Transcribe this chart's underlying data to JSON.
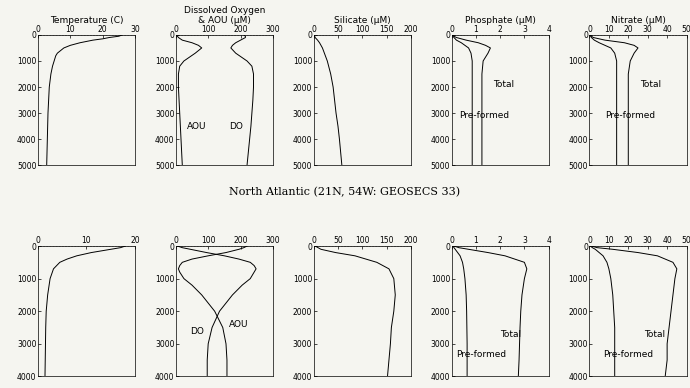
{
  "title_atlantic": "North Atlantic (21N, 54W: GEOSECS 33)",
  "background_color": "#f5f5f0",
  "atlantic": {
    "temp": {
      "xlim": [
        0,
        30
      ],
      "xticks": [
        0,
        10,
        20,
        30
      ],
      "xlabel": "Temperature (C)",
      "depth": [
        0,
        50,
        100,
        150,
        200,
        300,
        400,
        500,
        600,
        700,
        800,
        1000,
        1200,
        1500,
        2000,
        2500,
        3000,
        3500,
        4000,
        4500,
        5000
      ],
      "values": [
        26,
        25,
        22,
        20,
        17,
        13,
        10,
        8,
        7,
        6,
        5.5,
        5,
        4.5,
        4,
        3.5,
        3.3,
        3.1,
        3.0,
        2.9,
        2.8,
        2.7
      ]
    },
    "do": {
      "xlim": [
        0,
        300
      ],
      "xticks": [
        0,
        100,
        200,
        300
      ],
      "xlabel": "Dissolved Oxygen\n& AOU (μM)",
      "depth_do": [
        0,
        50,
        100,
        200,
        300,
        400,
        500,
        700,
        1000,
        1200,
        1500,
        2000,
        2500,
        3000,
        3500,
        4000,
        5000
      ],
      "values_do": [
        210,
        215,
        215,
        200,
        185,
        175,
        170,
        185,
        220,
        235,
        240,
        240,
        238,
        235,
        232,
        228,
        220
      ],
      "depth_aou": [
        0,
        50,
        100,
        200,
        300,
        400,
        500,
        700,
        1000,
        1200,
        1500,
        2000,
        2500,
        3000,
        3500,
        4000,
        5000
      ],
      "values_aou": [
        2,
        5,
        8,
        20,
        50,
        70,
        80,
        60,
        25,
        12,
        8,
        8,
        10,
        12,
        14,
        16,
        20
      ]
    },
    "silicate": {
      "xlim": [
        0,
        200
      ],
      "xticks": [
        0,
        50,
        100,
        150,
        200
      ],
      "xlabel": "Silicate (μM)",
      "depth": [
        0,
        100,
        200,
        300,
        500,
        700,
        1000,
        1500,
        2000,
        2500,
        3000,
        3500,
        4000,
        5000
      ],
      "values": [
        1,
        3,
        8,
        12,
        18,
        22,
        28,
        35,
        40,
        43,
        46,
        50,
        53,
        58
      ]
    },
    "phosphate": {
      "xlim": [
        0,
        4
      ],
      "xticks": [
        0,
        1,
        2,
        3,
        4
      ],
      "xlabel": "Phosphate (μM)",
      "depth_total": [
        0,
        50,
        100,
        200,
        300,
        400,
        500,
        700,
        1000,
        1500,
        2000,
        2500,
        3000,
        3500,
        4000,
        5000
      ],
      "values_total": [
        0.05,
        0.1,
        0.2,
        0.6,
        1.1,
        1.4,
        1.6,
        1.5,
        1.3,
        1.25,
        1.25,
        1.25,
        1.25,
        1.25,
        1.25,
        1.25
      ],
      "depth_preformed": [
        0,
        50,
        100,
        200,
        300,
        400,
        500,
        700,
        1000,
        1500,
        2000,
        2500,
        3000,
        3500,
        4000,
        5000
      ],
      "values_preformed": [
        0.03,
        0.06,
        0.1,
        0.2,
        0.4,
        0.55,
        0.7,
        0.8,
        0.85,
        0.85,
        0.85,
        0.85,
        0.85,
        0.85,
        0.85,
        0.85
      ]
    },
    "nitrate": {
      "xlim": [
        0,
        50
      ],
      "xticks": [
        0,
        10,
        20,
        30,
        40,
        50
      ],
      "xlabel": "Nitrate (μM)",
      "depth_total": [
        0,
        50,
        100,
        200,
        300,
        400,
        500,
        700,
        1000,
        1500,
        2000,
        2500,
        3000,
        3500,
        4000,
        5000
      ],
      "values_total": [
        0.5,
        1,
        2,
        8,
        18,
        23,
        25,
        23,
        21,
        20,
        20,
        20,
        20,
        20,
        20,
        20
      ],
      "depth_preformed": [
        0,
        50,
        100,
        200,
        300,
        400,
        500,
        700,
        1000,
        1500,
        2000,
        2500,
        3000,
        3500,
        4000,
        5000
      ],
      "values_preformed": [
        0.3,
        0.6,
        1,
        2.5,
        5,
        8,
        11,
        13,
        14,
        14,
        14,
        14,
        14,
        14,
        14,
        14
      ]
    },
    "ylim": [
      0,
      5000
    ],
    "yticks": [
      0,
      1000,
      2000,
      3000,
      4000,
      5000
    ]
  },
  "pacific": {
    "temp": {
      "xlim": [
        0,
        20
      ],
      "xticks": [
        0,
        10,
        20
      ],
      "depth": [
        0,
        50,
        100,
        150,
        200,
        300,
        400,
        500,
        700,
        1000,
        1500,
        2000,
        2500,
        3000,
        3500,
        4000
      ],
      "values": [
        18,
        17,
        15,
        13,
        11,
        8,
        6,
        4.5,
        3.2,
        2.5,
        2.0,
        1.7,
        1.6,
        1.55,
        1.5,
        1.45
      ]
    },
    "do": {
      "xlim": [
        0,
        300
      ],
      "xticks": [
        0,
        100,
        200,
        300
      ],
      "depth_do": [
        0,
        50,
        100,
        200,
        300,
        400,
        500,
        600,
        700,
        800,
        1000,
        1200,
        1500,
        2000,
        2500,
        3000,
        3500,
        4000
      ],
      "values_do": [
        220,
        210,
        195,
        155,
        100,
        50,
        20,
        12,
        8,
        12,
        25,
        50,
        80,
        120,
        145,
        155,
        158,
        158
      ],
      "depth_aou": [
        0,
        50,
        100,
        200,
        300,
        400,
        500,
        600,
        700,
        800,
        1000,
        1200,
        1500,
        2000,
        2500,
        3000,
        3500,
        4000
      ],
      "values_aou": [
        5,
        20,
        45,
        95,
        150,
        195,
        230,
        242,
        248,
        242,
        230,
        205,
        175,
        135,
        112,
        100,
        97,
        97
      ]
    },
    "silicate": {
      "xlim": [
        0,
        200
      ],
      "xticks": [
        0,
        50,
        100,
        150,
        200
      ],
      "depth": [
        0,
        100,
        200,
        300,
        500,
        700,
        1000,
        1500,
        2000,
        2500,
        3000,
        3500,
        4000
      ],
      "values": [
        3,
        15,
        45,
        85,
        130,
        155,
        165,
        168,
        165,
        160,
        158,
        155,
        152
      ]
    },
    "phosphate": {
      "xlim": [
        0,
        4
      ],
      "xticks": [
        0,
        1,
        2,
        3,
        4
      ],
      "depth_total": [
        0,
        50,
        100,
        200,
        300,
        500,
        700,
        1000,
        1500,
        2000,
        2500,
        3000,
        3500,
        4000
      ],
      "values_total": [
        0.1,
        0.3,
        0.7,
        1.5,
        2.2,
        3.0,
        3.1,
        3.0,
        2.9,
        2.85,
        2.82,
        2.8,
        2.78,
        2.75
      ],
      "depth_preformed": [
        0,
        50,
        100,
        200,
        300,
        500,
        700,
        1000,
        1500,
        2000,
        2500,
        3000,
        3500,
        4000
      ],
      "values_preformed": [
        0.05,
        0.1,
        0.15,
        0.25,
        0.35,
        0.45,
        0.5,
        0.55,
        0.6,
        0.62,
        0.63,
        0.64,
        0.64,
        0.64
      ]
    },
    "nitrate": {
      "xlim": [
        0,
        50
      ],
      "xticks": [
        0,
        10,
        20,
        30,
        40,
        50
      ],
      "depth_total": [
        0,
        50,
        100,
        200,
        300,
        500,
        700,
        1000,
        1500,
        2000,
        2500,
        3000,
        3500,
        4000
      ],
      "values_total": [
        1,
        4,
        12,
        25,
        35,
        43,
        45,
        44,
        43,
        42,
        41,
        40,
        40,
        39
      ],
      "depth_preformed": [
        0,
        50,
        100,
        200,
        300,
        500,
        700,
        1000,
        1500,
        2000,
        2500,
        3000,
        3500,
        4000
      ],
      "values_preformed": [
        0.5,
        1.5,
        3,
        5,
        7,
        9,
        10,
        11,
        12,
        12.5,
        13,
        13,
        13,
        13
      ]
    },
    "ylim": [
      0,
      4000
    ],
    "yticks": [
      0,
      1000,
      2000,
      3000,
      4000
    ]
  },
  "line_color": "#000000",
  "font_size_title": 8,
  "font_size_label": 6.5,
  "font_size_tick": 5.5,
  "font_size_annotation": 6.5
}
